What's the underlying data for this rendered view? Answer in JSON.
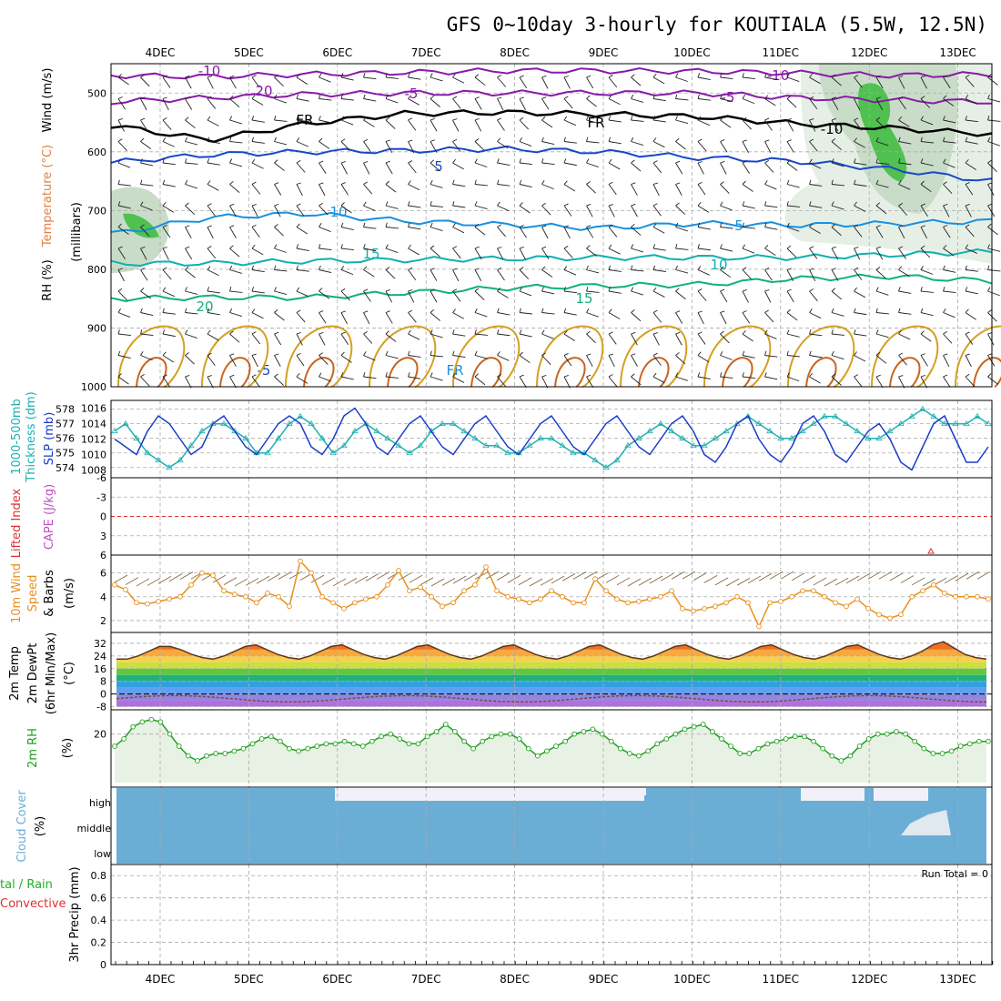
{
  "title": "GFS 0~10day 3-hourly for KOUTIALA (5.5W, 12.5N)",
  "dates": [
    "4DEC",
    "5DEC",
    "6DEC",
    "7DEC",
    "8DEC",
    "9DEC",
    "10DEC",
    "11DEC",
    "12DEC",
    "13DEC"
  ],
  "colors": {
    "temp_neg": "#8a1aa8",
    "temp_fr": "#000000",
    "temp_5": "#1848c8",
    "temp_10": "#1890e0",
    "temp_15": "#10b0b0",
    "temp_20": "#10b080",
    "rh_fill": "#c8dcc8",
    "rh_fill2": "#50c050",
    "slp": "#1a3cc8",
    "thickness": "#20b0b0",
    "wind10": "#e89020",
    "lifted": "#e03030",
    "cape": "#c050c0",
    "rh2m": "#20a020",
    "cloud": "#6aaed6",
    "cloud_bg": "#f2f0f8",
    "precip_total": "#20b020",
    "precip_conv": "#e03030"
  },
  "panels": {
    "upper": {
      "ylabel_wind": "Wind (m/s)",
      "ylabel_temp": "Temperature (°C)",
      "ylabel_rh": "RH (%)",
      "ylabel_pres": "(millibars)",
      "pressure_ticks": [
        "500",
        "600",
        "700",
        "800",
        "900",
        "1000"
      ]
    },
    "slp": {
      "ylabel_thick": "1000-500mb",
      "ylabel_thick2": "Thickness (dm)",
      "ylabel_slp": "SLP (mb)",
      "left_ticks": [
        "574",
        "575",
        "576",
        "577",
        "578"
      ],
      "right_ticks": [
        "1008",
        "1010",
        "1012",
        "1014",
        "1016"
      ]
    },
    "li": {
      "ylabel_li": "Lifted Index",
      "ylabel_cape": "CAPE (J/kg)",
      "ticks": [
        "-6",
        "-3",
        "0",
        "3",
        "6"
      ]
    },
    "wind10": {
      "ylabel_1": "10m Wind",
      "ylabel_2": "Speed",
      "ylabel_3": "& Barbs",
      "ylabel_units": "(m/s)",
      "ticks": [
        "2",
        "4",
        "6"
      ]
    },
    "temp2m": {
      "ylabel_1": "2m Temp",
      "ylabel_2": "2m DewPt",
      "ylabel_3": "(6hr Min/Max)",
      "ylabel_units": "(°C)",
      "ticks": [
        "32",
        "24",
        "16",
        "8",
        "0",
        "-8"
      ]
    },
    "rh2m": {
      "ylabel_1": "2m RH",
      "ylabel_units": "(%)",
      "ticks": [
        "20"
      ]
    },
    "cloud": {
      "ylabel_1": "Cloud Cover",
      "ylabel_units": "(%)",
      "ticks": [
        "high",
        "middle",
        "low"
      ]
    },
    "precip": {
      "ylabel_1": "tal / Rain",
      "ylabel_2": "Convective",
      "ylabel_3": "3hr Precip (mm)",
      "ticks": [
        "0",
        "0.2",
        "0.4",
        "0.6",
        "0.8"
      ],
      "run_total": "Run Total = 0"
    }
  },
  "contour_labels": [
    "-10",
    "-5",
    "FR",
    "5",
    "10",
    "15",
    "20",
    "-10",
    "-5",
    "FR",
    "5",
    "10",
    "15",
    "20",
    "-10",
    "-5",
    "FR"
  ],
  "chart_data": [
    {
      "type": "line",
      "panel": "upper-air temperature contours",
      "x": [
        "4DEC",
        "5DEC",
        "6DEC",
        "7DEC",
        "8DEC",
        "9DEC",
        "10DEC",
        "11DEC",
        "12DEC",
        "13DEC"
      ],
      "series": [
        {
          "name": "-10",
          "values": [
            470,
            472,
            468,
            465,
            462,
            462,
            463,
            466,
            470,
            468
          ]
        },
        {
          "name": "-5",
          "values": [
            515,
            508,
            502,
            500,
            500,
            500,
            500,
            508,
            512,
            515
          ]
        },
        {
          "name": "FR",
          "values": [
            555,
            580,
            552,
            535,
            533,
            536,
            540,
            552,
            560,
            570
          ]
        },
        {
          "name": "5",
          "values": [
            618,
            605,
            600,
            598,
            595,
            600,
            610,
            616,
            630,
            650
          ]
        },
        {
          "name": "10",
          "values": [
            740,
            712,
            705,
            718,
            724,
            730,
            722,
            725,
            722,
            718
          ]
        },
        {
          "name": "15",
          "values": [
            790,
            790,
            786,
            784,
            782,
            780,
            780,
            780,
            775,
            770
          ]
        },
        {
          "name": "20",
          "values": [
            850,
            848,
            848,
            840,
            832,
            828,
            826,
            816,
            812,
            820
          ]
        }
      ],
      "ylim": [
        1000,
        450
      ]
    },
    {
      "type": "line",
      "panel": "slp-thickness",
      "x_step_hours": 3,
      "series": [
        {
          "name": "SLP (mb)",
          "values": [
            1012,
            1011,
            1010,
            1013,
            1015,
            1014,
            1012,
            1010,
            1011,
            1014,
            1015,
            1013,
            1011,
            1010,
            1012,
            1014,
            1015,
            1014,
            1011,
            1010,
            1012,
            1015,
            1016,
            1014,
            1011,
            1010,
            1012,
            1014,
            1015,
            1013,
            1011,
            1010,
            1012,
            1014,
            1015,
            1013,
            1011,
            1010,
            1012,
            1014,
            1015,
            1013,
            1011,
            1010,
            1012,
            1014,
            1015,
            1013,
            1011,
            1010,
            1012,
            1014,
            1015,
            1013,
            1010,
            1009,
            1011,
            1014,
            1015,
            1012,
            1010,
            1009,
            1011,
            1014,
            1015,
            1013,
            1010,
            1009,
            1011,
            1013,
            1014,
            1012,
            1009,
            1008,
            1011,
            1014,
            1015,
            1012,
            1009,
            1009,
            1011
          ]
        },
        {
          "name": "1000-500mb Thickness (dm)",
          "values": [
            576.5,
            577,
            576,
            575,
            574.5,
            574,
            574.5,
            575.5,
            576.5,
            577,
            577,
            576.5,
            576,
            575,
            575,
            576,
            577,
            577.5,
            577,
            576,
            575,
            575.5,
            576.5,
            577,
            576.5,
            576,
            575.5,
            575,
            575.5,
            576.5,
            577,
            577,
            576.5,
            576,
            575.5,
            575.5,
            575,
            575,
            575.5,
            576,
            576,
            575.5,
            575,
            575,
            574.5,
            574,
            574.5,
            575.5,
            576,
            576.5,
            577,
            576.5,
            576,
            575.5,
            575.5,
            576,
            576.5,
            577,
            577.5,
            577,
            576.5,
            576,
            576,
            576.5,
            577,
            577.5,
            577.5,
            577,
            576.5,
            576,
            576,
            576.5,
            577,
            577.5,
            578,
            577.5,
            577,
            577,
            577,
            577.5,
            577
          ]
        }
      ]
    },
    {
      "type": "line",
      "panel": "10m wind speed",
      "x_step_hours": 3,
      "values": [
        5,
        4.6,
        3.5,
        3.4,
        3.6,
        3.8,
        4,
        5,
        6,
        5.8,
        4.5,
        4.2,
        4,
        3.5,
        4.3,
        4,
        3.2,
        7,
        6,
        4,
        3.5,
        3,
        3.5,
        3.8,
        4,
        5,
        6.2,
        4.5,
        4.8,
        4,
        3.2,
        3.5,
        4.5,
        5,
        6.5,
        4.5,
        4,
        3.8,
        3.5,
        3.8,
        4.5,
        4,
        3.5,
        3.5,
        5.5,
        4.5,
        3.8,
        3.5,
        3.6,
        3.8,
        4,
        4.5,
        3,
        2.8,
        3,
        3.2,
        3.5,
        4,
        3.5,
        1.5,
        3.5,
        3.6,
        4,
        4.5,
        4.5,
        4,
        3.5,
        3.2,
        3.8,
        3,
        2.5,
        2.2,
        2.5,
        4,
        4.5,
        5,
        4.3,
        4,
        4,
        4,
        3.8
      ],
      "ylim": [
        1,
        7.5
      ]
    },
    {
      "type": "line",
      "panel": "2m temperature",
      "x_step_hours": 3,
      "values": [
        22,
        22,
        24,
        27,
        30,
        30,
        28,
        25,
        23,
        22,
        24,
        27,
        30,
        31,
        28,
        25,
        23,
        22,
        24,
        27,
        30,
        31,
        28,
        25,
        23,
        22,
        24,
        27,
        30,
        31,
        28,
        25,
        23,
        22,
        24,
        27,
        30,
        31,
        28,
        25,
        23,
        22,
        24,
        27,
        30,
        31,
        28,
        25,
        23,
        22,
        24,
        27,
        30,
        31,
        28,
        25,
        23,
        22,
        24,
        27,
        30,
        31,
        28,
        25,
        23,
        22,
        24,
        27,
        30,
        31,
        28,
        25,
        23,
        22,
        24,
        27,
        31,
        33,
        29,
        25,
        23,
        22
      ],
      "ylim": [
        -10,
        36
      ]
    },
    {
      "type": "line",
      "panel": "2m RH",
      "x_step_hours": 3,
      "values": [
        15,
        18,
        23,
        25,
        26,
        25,
        20,
        15,
        11,
        9,
        11,
        12,
        12,
        13,
        14,
        16,
        18,
        19,
        17,
        14,
        13,
        14,
        15,
        16,
        16,
        17,
        16,
        15,
        17,
        19,
        20,
        18,
        16,
        16,
        19,
        21,
        24,
        21,
        17,
        14,
        17,
        19,
        20,
        20,
        18,
        14,
        11,
        13,
        15,
        17,
        20,
        21,
        22,
        20,
        17,
        14,
        12,
        11,
        13,
        16,
        18,
        20,
        22,
        23,
        24,
        21,
        18,
        15,
        12,
        12,
        14,
        16,
        17,
        18,
        19,
        19,
        17,
        14,
        11,
        9,
        11,
        15,
        18,
        20,
        20,
        21,
        20,
        17,
        14,
        12,
        12,
        13,
        15,
        16,
        17,
        17
      ],
      "ylim": [
        0,
        30
      ]
    },
    {
      "type": "table",
      "panel": "3hr precip",
      "values": [
        0
      ],
      "ylim": [
        0,
        0.8
      ]
    }
  ]
}
